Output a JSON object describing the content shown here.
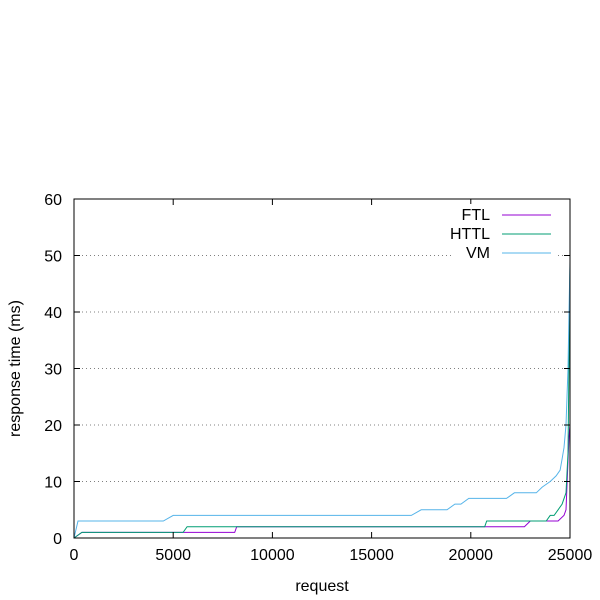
{
  "colors": {
    "background": "#ffffff",
    "frame": "#000000",
    "grid": "#808080"
  },
  "chart_data": {
    "type": "line",
    "title": "",
    "xlabel": "request",
    "ylabel": "response time (ms)",
    "xlim": [
      0,
      25000
    ],
    "ylim": [
      0,
      60
    ],
    "xticks": [
      0,
      5000,
      10000,
      15000,
      20000,
      25000
    ],
    "yticks": [
      0,
      10,
      20,
      30,
      40,
      50,
      60
    ],
    "grid": "horizontal dotted",
    "legend": "top-right",
    "series": [
      {
        "name": "FTL",
        "color": "#9400d3",
        "x": [
          0,
          400,
          8100,
          8200,
          22700,
          23000,
          24400,
          24700,
          24800,
          24950,
          25000
        ],
        "y": [
          0,
          1,
          1,
          2,
          2,
          3,
          3,
          4,
          5,
          18,
          20
        ]
      },
      {
        "name": "HTTL",
        "color": "#009e73",
        "x": [
          0,
          400,
          5500,
          5700,
          20700,
          20800,
          23800,
          24000,
          24200,
          24400,
          24600,
          24800,
          24900,
          25000
        ],
        "y": [
          0,
          1,
          1,
          2,
          2,
          3,
          3,
          4,
          4,
          5,
          6,
          8,
          15,
          48
        ]
      },
      {
        "name": "VM",
        "color": "#56b4e9",
        "x": [
          0,
          200,
          4500,
          5000,
          17000,
          17500,
          18800,
          19200,
          19500,
          19900,
          21800,
          22200,
          23300,
          23600,
          24000,
          24300,
          24500,
          24600,
          24700,
          24800,
          24850,
          24900,
          24950,
          25000
        ],
        "y": [
          0,
          3,
          3,
          4,
          4,
          5,
          5,
          6,
          6,
          7,
          7,
          8,
          8,
          9,
          10,
          11,
          12,
          14,
          16,
          20,
          25,
          30,
          40,
          49
        ]
      }
    ]
  }
}
